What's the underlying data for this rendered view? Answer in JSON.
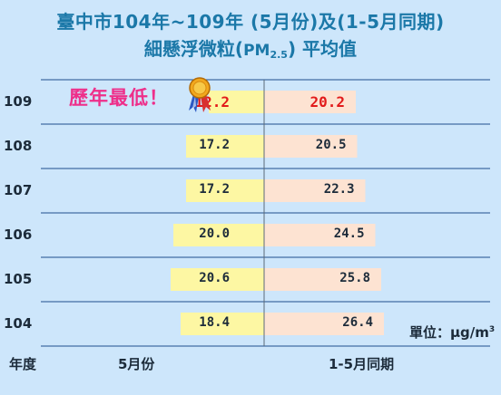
{
  "title": {
    "line1": "臺中市104年~109年 (5月份)及(1-5月同期)",
    "line2_prefix": "細懸浮微粒(",
    "line2_pm": "PM",
    "line2_sub": "2.5",
    "line2_suffix": ")  平均值"
  },
  "annotation": "歷年最低！",
  "unit_text": "單位：μg/m",
  "unit_sup": "3",
  "medal_icon": "medal-icon",
  "colors": {
    "background": "#cde6fb",
    "may_bar": "#fdf7a3",
    "janmay_bar": "#fde3d2",
    "title": "#1b78a8",
    "highlight_text": "#e21b1b",
    "annotation": "#ee2f8a"
  },
  "chart_data": {
    "type": "bar",
    "orientation": "horizontal-diverging",
    "categories": [
      "109",
      "108",
      "107",
      "106",
      "105",
      "104"
    ],
    "category_axis_label": "年度",
    "series": [
      {
        "name": "5月份",
        "values": [
          12.2,
          17.2,
          17.2,
          20.0,
          20.6,
          18.4
        ],
        "labels": [
          "12.2",
          "17.2",
          "17.2",
          "20.0",
          "20.6",
          "18.4"
        ]
      },
      {
        "name": "1-5月同期",
        "values": [
          20.2,
          20.5,
          22.3,
          24.5,
          25.8,
          26.4
        ],
        "labels": [
          "20.2",
          "20.5",
          "22.3",
          "24.5",
          "25.8",
          "26.4"
        ]
      }
    ],
    "highlight_category": "109",
    "grid": "horizontal lines between rows"
  }
}
